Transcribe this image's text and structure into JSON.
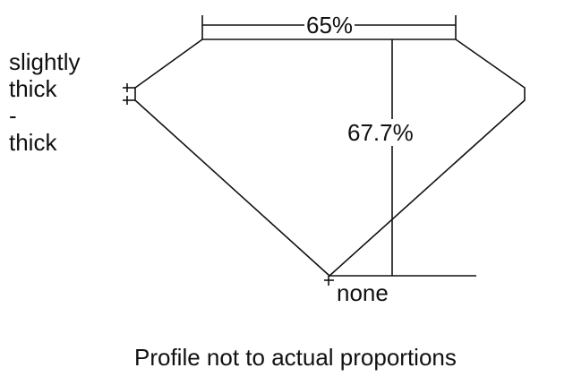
{
  "table_width_label": "65%",
  "total_depth_label": "67.7%",
  "girdle_label": [
    "slightly",
    "thick",
    "-",
    "thick"
  ],
  "culet_label": "none",
  "caption": "Profile not to actual proportions"
}
